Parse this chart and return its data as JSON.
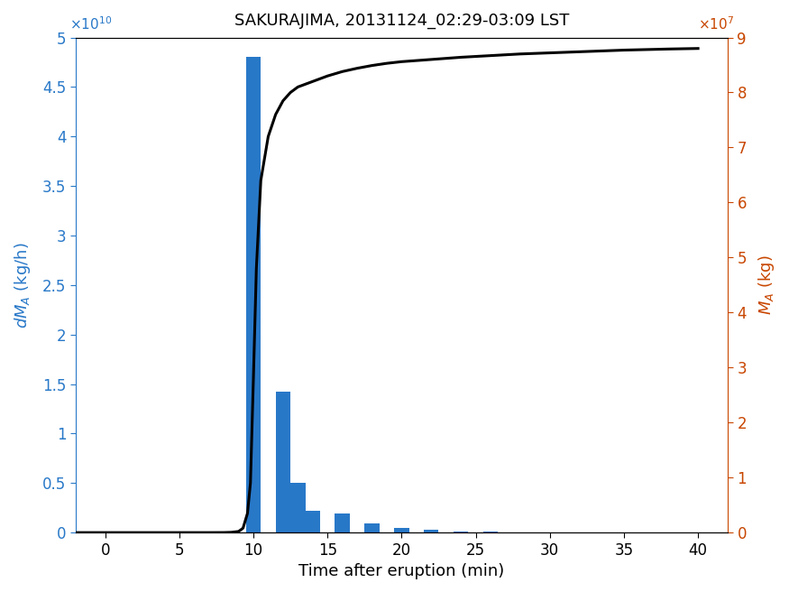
{
  "title": "SAKURAJIMA, 20131124_02:29-03:09 LST",
  "title_fontsize": 13,
  "xlabel": "Time after eruption (min)",
  "ylabel_left": "dM_A (kg/h)",
  "ylabel_right": "M_A (kg)",
  "bar_color": "#2878C8",
  "line_color": "#000000",
  "left_axis_color": "#2878C8",
  "right_axis_color": "#C84600",
  "xlim": [
    -2,
    42
  ],
  "xticks": [
    0,
    5,
    10,
    15,
    20,
    25,
    30,
    35,
    40
  ],
  "ylim_left": [
    0,
    50000000000.0
  ],
  "ylim_right": [
    0,
    90000000.0
  ],
  "yticks_left": [
    0,
    5000000000.0,
    10000000000.0,
    15000000000.0,
    20000000000.0,
    25000000000.0,
    30000000000.0,
    35000000000.0,
    40000000000.0,
    45000000000.0,
    50000000000.0
  ],
  "yticks_right": [
    0,
    10000000.0,
    20000000.0,
    30000000.0,
    40000000.0,
    50000000.0,
    60000000.0,
    70000000.0,
    80000000.0,
    90000000.0
  ],
  "ytick_labels_left": [
    "0",
    "0.5",
    "1",
    "1.5",
    "2",
    "2.5",
    "3",
    "3.5",
    "4",
    "4.5",
    "5"
  ],
  "ytick_labels_right": [
    "0",
    "1",
    "2",
    "3",
    "4",
    "5",
    "6",
    "7",
    "8",
    "9"
  ],
  "bar_centers": [
    10,
    11,
    12,
    13,
    14,
    16,
    18,
    20,
    22,
    24,
    26,
    28,
    30,
    32,
    34,
    36,
    38
  ],
  "bar_heights": [
    48000000000.0,
    0.0,
    14200000000.0,
    5000000000.0,
    2200000000.0,
    1900000000.0,
    900000000.0,
    500000000.0,
    250000000.0,
    120000000.0,
    60000000.0,
    30000000.0,
    20000000.0,
    10000000.0,
    5000000.0,
    2000000.0,
    1000000.0
  ],
  "bar_width": 1.0,
  "cumulative_x": [
    -2,
    0,
    5,
    7,
    8,
    8.5,
    9.0,
    9.3,
    9.6,
    9.8,
    10.0,
    10.2,
    10.5,
    11.0,
    11.5,
    12.0,
    12.5,
    13.0,
    14.0,
    15.0,
    16.0,
    17.0,
    18.0,
    19.0,
    20.0,
    22.0,
    24.0,
    26.0,
    28.0,
    30.0,
    32.0,
    35.0,
    38.0,
    40.0
  ],
  "cumulative_y": [
    0,
    0,
    0,
    0,
    10000.0,
    50000.0,
    200000.0,
    800000.0,
    3500000.0,
    9000000.0,
    28000000.0,
    48000000.0,
    64000000.0,
    72000000.0,
    76000000.0,
    78500000.0,
    80000000.0,
    81000000.0,
    82000000.0,
    83000000.0,
    83800000.0,
    84400000.0,
    84900000.0,
    85300000.0,
    85600000.0,
    86000000.0,
    86400000.0,
    86700000.0,
    87000000.0,
    87200000.0,
    87400000.0,
    87700000.0,
    87900000.0,
    88000000.0
  ]
}
